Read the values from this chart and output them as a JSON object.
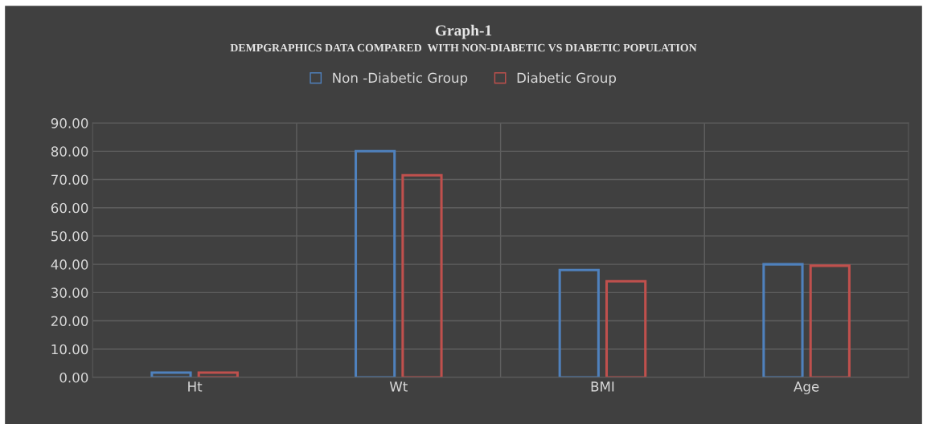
{
  "chart_data": {
    "type": "bar",
    "title": "Graph-1",
    "subtitle": "DEMPGRAPHICS DATA COMPARED  WITH NON-DIABETIC VS DIABETIC POPULATION",
    "categories": [
      "Ht",
      "Wt",
      "BMI",
      "Age"
    ],
    "series": [
      {
        "name": "Non -Diabetic Group",
        "color": "#4f81bd",
        "values": [
          1.7,
          80,
          38,
          40
        ]
      },
      {
        "name": "Diabetic Group",
        "color": "#c0504d",
        "values": [
          1.7,
          71.5,
          34,
          39.5
        ]
      }
    ],
    "ylim": [
      0,
      90
    ],
    "yticks": [
      {
        "value": 0,
        "label": "0.00"
      },
      {
        "value": 10,
        "label": "10.00"
      },
      {
        "value": 20,
        "label": "20.00"
      },
      {
        "value": 30,
        "label": "30.00"
      },
      {
        "value": 40,
        "label": "40.00"
      },
      {
        "value": 50,
        "label": "50.00"
      },
      {
        "value": 60,
        "label": "60.00"
      },
      {
        "value": 70,
        "label": "70.00"
      },
      {
        "value": 80,
        "label": "80.00"
      },
      {
        "value": 90,
        "label": "90.00"
      }
    ],
    "grid": true,
    "legend": "top"
  }
}
